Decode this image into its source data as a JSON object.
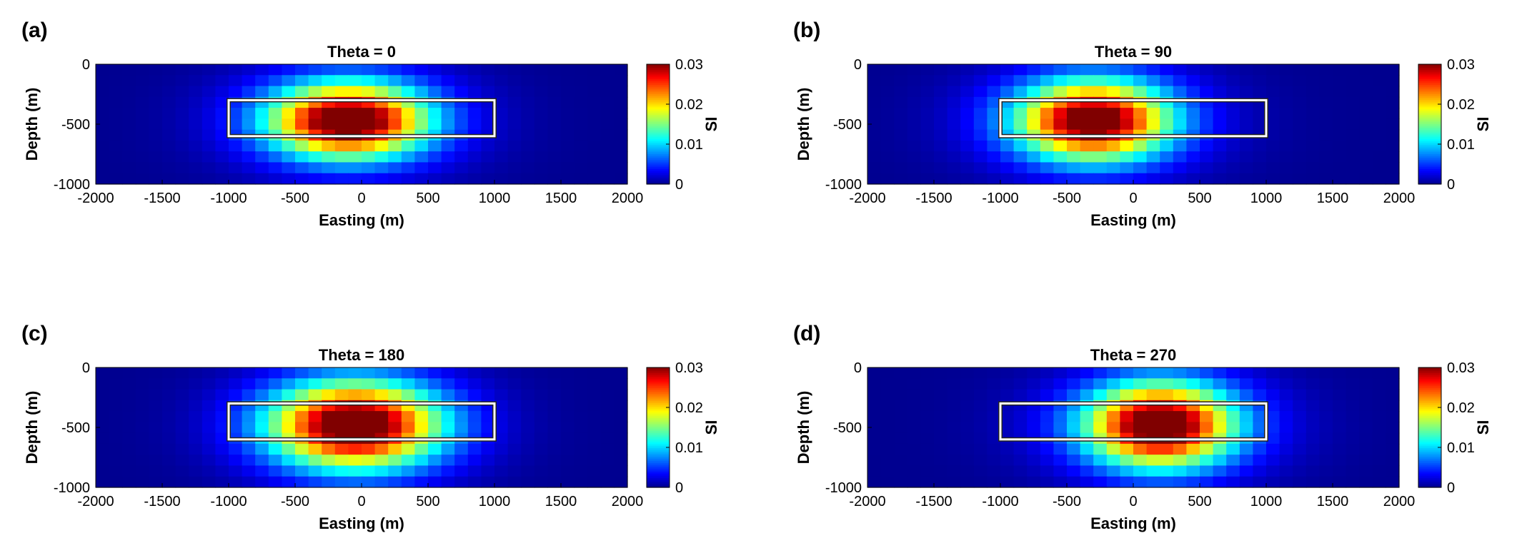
{
  "figure": {
    "colormap": "jet",
    "colormap_stops": [
      "#00008f",
      "#0000ff",
      "#00ffff",
      "#ffff00",
      "#ff0000",
      "#800000"
    ]
  },
  "chart_data": [
    {
      "type": "heatmap",
      "panel_label": "(a)",
      "title": "Theta = 0",
      "theta": 0,
      "xlabel": "Easting (m)",
      "ylabel": "Depth (m)",
      "xlim": [
        -2000,
        2000
      ],
      "ylim": [
        -1000,
        0
      ],
      "xticks": [
        -2000,
        -1500,
        -1000,
        -500,
        0,
        500,
        1000,
        1500,
        2000
      ],
      "yticks": [
        0,
        -500,
        -1000
      ],
      "colorbar": {
        "label": "SI",
        "range": [
          0,
          0.03
        ],
        "ticks": [
          0,
          0.01,
          0.02,
          0.03
        ]
      },
      "body_outline": {
        "x_range": [
          -1000,
          1000
        ],
        "depth_range": [
          -300,
          -600
        ]
      },
      "peak": {
        "x": -100,
        "depth": -470,
        "value": 0.029,
        "spread_x": 520,
        "spread_depth": 280
      }
    },
    {
      "type": "heatmap",
      "panel_label": "(b)",
      "title": "Theta = 90",
      "theta": 90,
      "xlabel": "Easting (m)",
      "ylabel": "Depth (m)",
      "xlim": [
        -2000,
        2000
      ],
      "ylim": [
        -1000,
        0
      ],
      "xticks": [
        -2000,
        -1500,
        -1000,
        -500,
        0,
        500,
        1000,
        1500,
        2000
      ],
      "yticks": [
        0,
        -500,
        -1000
      ],
      "colorbar": {
        "label": "SI",
        "range": [
          0,
          0.03
        ],
        "ticks": [
          0,
          0.01,
          0.02,
          0.03
        ]
      },
      "body_outline": {
        "x_range": [
          -1000,
          1000
        ],
        "depth_range": [
          -300,
          -600
        ]
      },
      "peak": {
        "x": -300,
        "depth": -470,
        "value": 0.028,
        "spread_x": 500,
        "spread_depth": 300
      }
    },
    {
      "type": "heatmap",
      "panel_label": "(c)",
      "title": "Theta = 180",
      "theta": 180,
      "xlabel": "Easting (m)",
      "ylabel": "Depth (m)",
      "xlim": [
        -2000,
        2000
      ],
      "ylim": [
        -1000,
        0
      ],
      "xticks": [
        -2000,
        -1500,
        -1000,
        -500,
        0,
        500,
        1000,
        1500,
        2000
      ],
      "yticks": [
        0,
        -500,
        -1000
      ],
      "colorbar": {
        "label": "SI",
        "range": [
          0,
          0.03
        ],
        "ticks": [
          0,
          0.01,
          0.02,
          0.03
        ]
      },
      "body_outline": {
        "x_range": [
          -1000,
          1000
        ],
        "depth_range": [
          -300,
          -600
        ]
      },
      "peak": {
        "x": -50,
        "depth": -480,
        "value": 0.029,
        "spread_x": 560,
        "spread_depth": 330
      }
    },
    {
      "type": "heatmap",
      "panel_label": "(d)",
      "title": "Theta = 270",
      "theta": 270,
      "xlabel": "Easting (m)",
      "ylabel": "Depth (m)",
      "xlim": [
        -2000,
        2000
      ],
      "ylim": [
        -1000,
        0
      ],
      "xticks": [
        -2000,
        -1500,
        -1000,
        -500,
        0,
        500,
        1000,
        1500,
        2000
      ],
      "yticks": [
        0,
        -500,
        -1000
      ],
      "colorbar": {
        "label": "SI",
        "range": [
          0,
          0.03
        ],
        "ticks": [
          0,
          0.01,
          0.02,
          0.03
        ]
      },
      "body_outline": {
        "x_range": [
          -1000,
          1000
        ],
        "depth_range": [
          -300,
          -600
        ]
      },
      "peak": {
        "x": 200,
        "depth": -480,
        "value": 0.029,
        "spread_x": 480,
        "spread_depth": 320
      }
    }
  ]
}
